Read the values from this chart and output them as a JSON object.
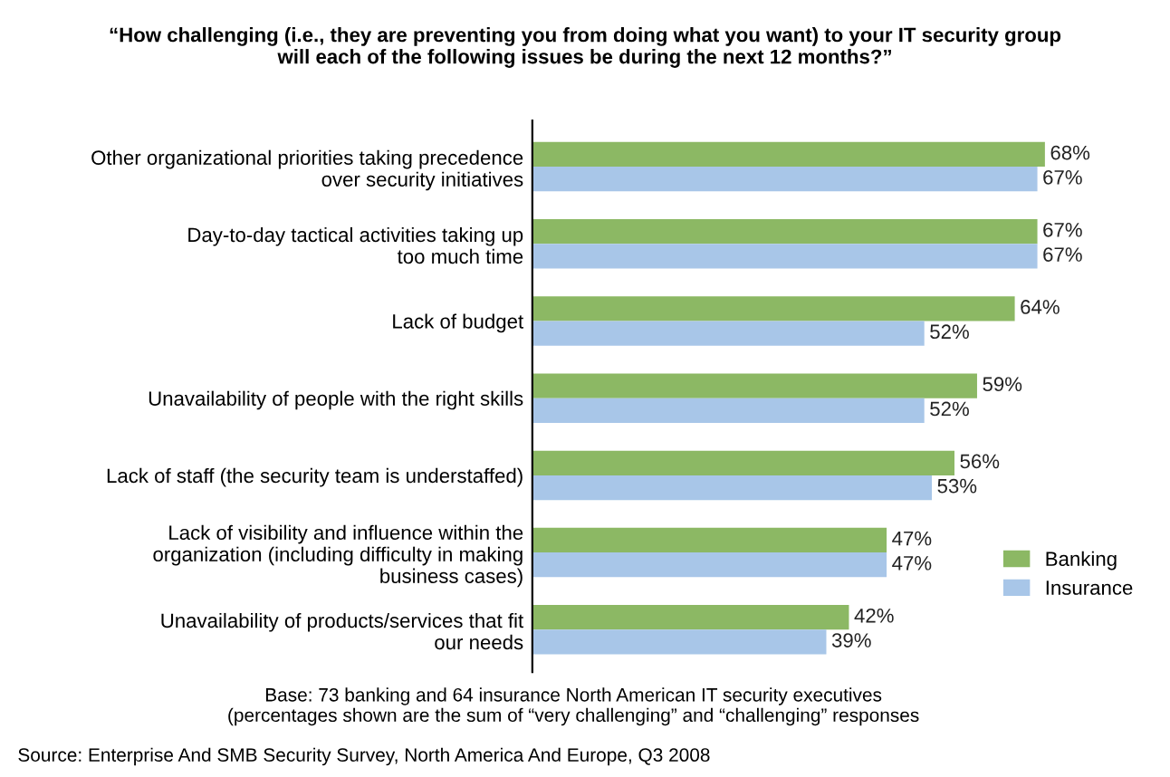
{
  "chart_data": {
    "type": "bar",
    "orientation": "horizontal",
    "title": "“How challenging (i.e., they are preventing you from doing what you want) to your IT security group\nwill each of the following issues be during the next 12 months?”",
    "categories": [
      "Other organizational priorities taking precedence\nover security initiatives",
      "Day-to-day tactical activities taking up\ntoo much time",
      "Lack of budget",
      "Unavailability of people with the right skills",
      "Lack of staff (the security team is understaffed)",
      "Lack of visibility and influence within the\norganization (including difficulty in making\nbusiness cases)",
      "Unavailability of products/services that fit\nour needs"
    ],
    "series": [
      {
        "name": "Banking",
        "color": "#8cb864",
        "values": [
          68,
          67,
          64,
          59,
          56,
          47,
          42
        ],
        "value_labels": [
          "68%",
          "67%",
          "64%",
          "59%",
          "56%",
          "47%",
          "42%"
        ]
      },
      {
        "name": "Insurance",
        "color": "#a8c6e8",
        "values": [
          67,
          67,
          52,
          52,
          53,
          47,
          39
        ],
        "value_labels": [
          "67%",
          "67%",
          "52%",
          "52%",
          "53%",
          "47%",
          "39%"
        ]
      }
    ],
    "tick_labels": "y",
    "legend": "bottom right",
    "grid": false,
    "annotations": [
      "Base: 73 banking and 64 insurance North American IT security executives\n(percentages shown are the sum of “very challenging” and “challenging” responses",
      "Source: Enterprise And SMB Security Survey, North America And Europe, Q3 2008"
    ]
  }
}
